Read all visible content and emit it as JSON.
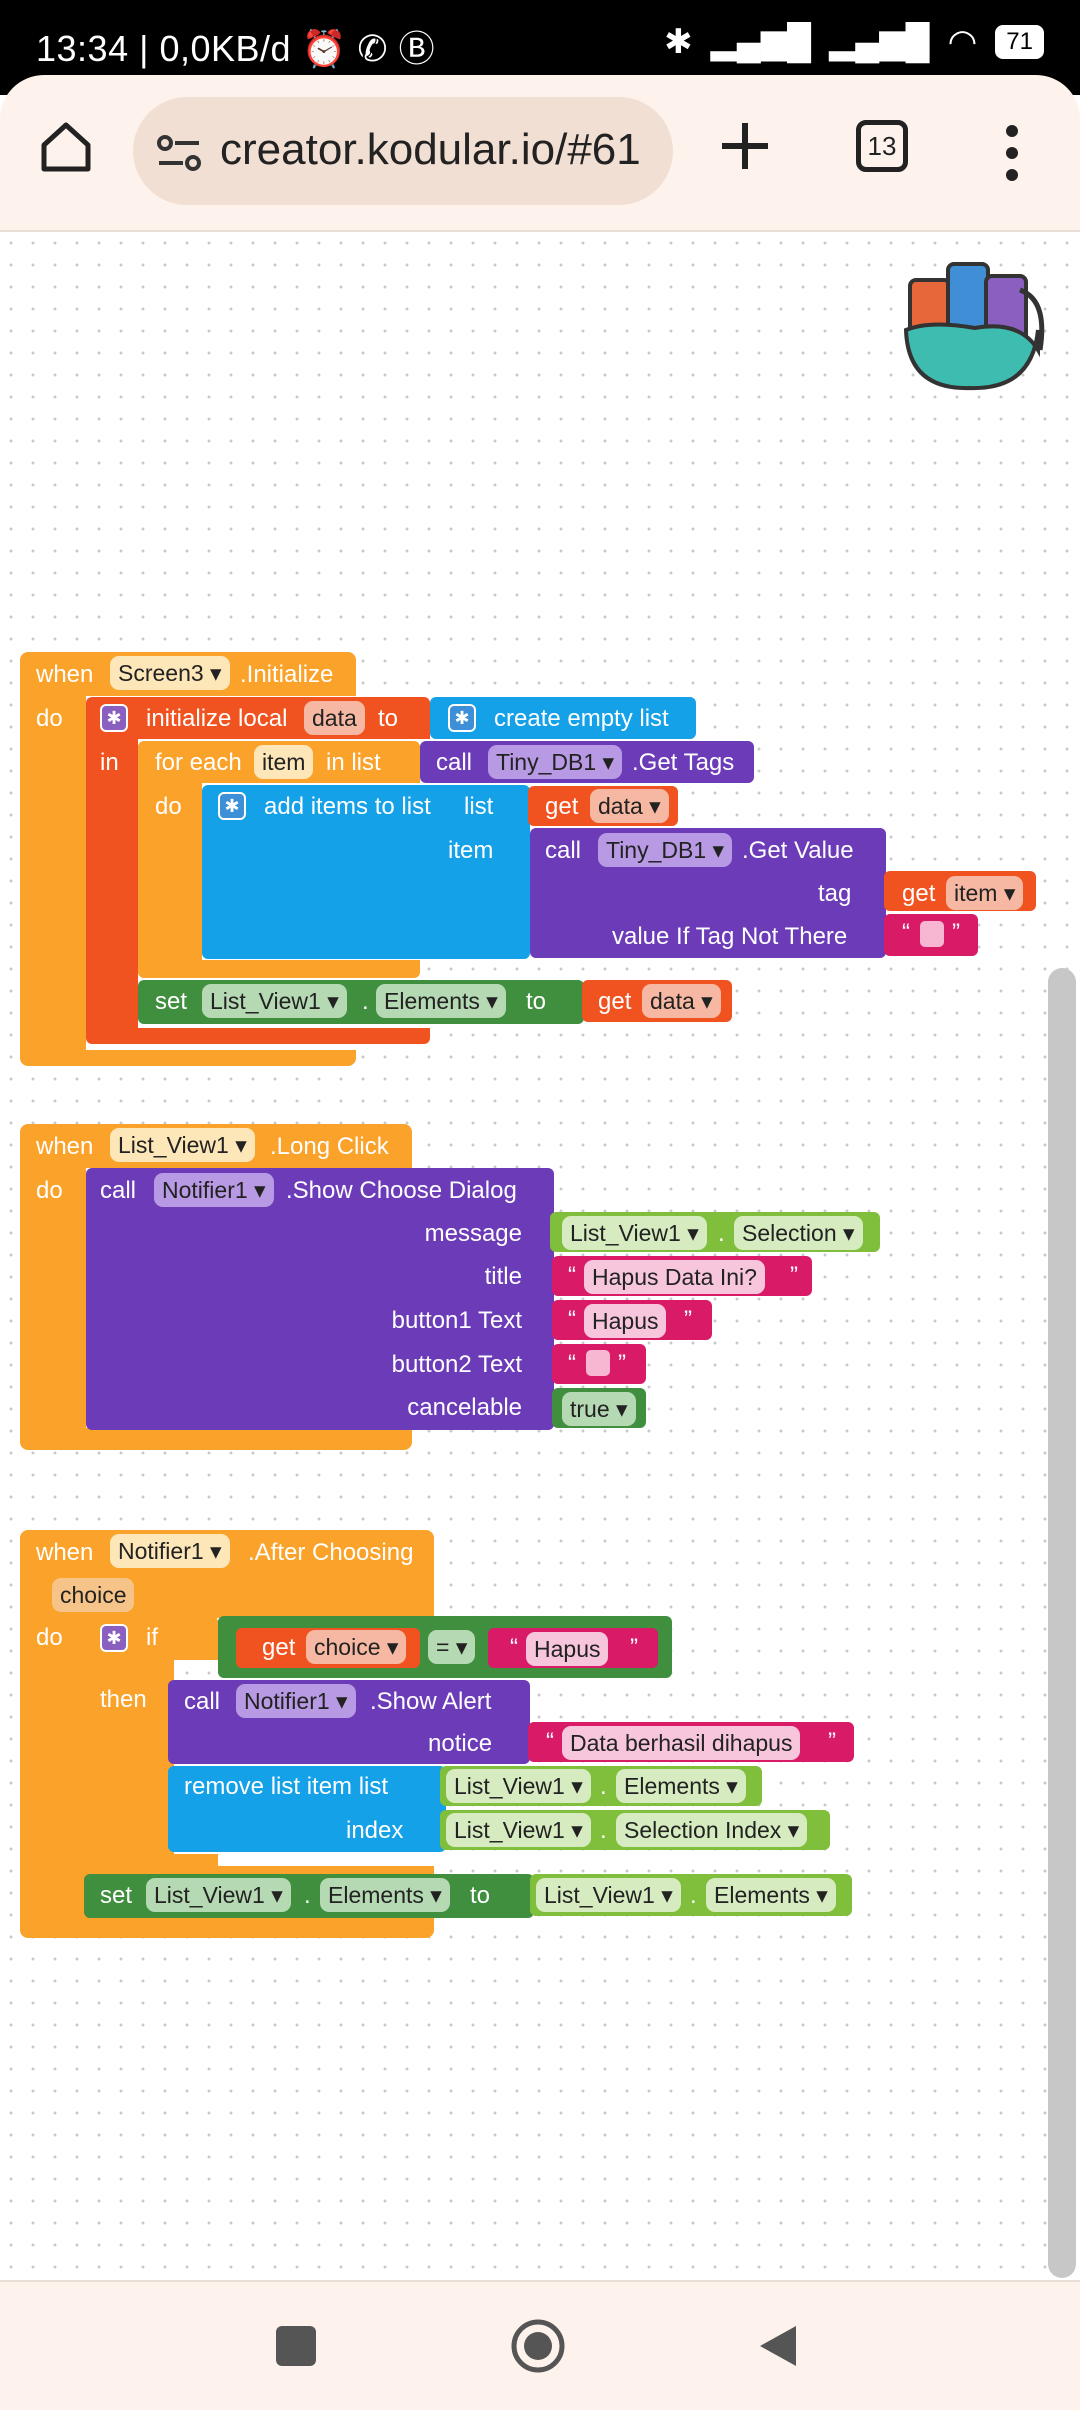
{
  "status": {
    "time": "13:34",
    "speed": "0,0KB/d",
    "battery": "71"
  },
  "browser": {
    "url": "creator.kodular.io/#61",
    "tabs_count": "13"
  },
  "block1": {
    "when": "when",
    "component": "Screen3",
    "event": ".Initialize",
    "do": "do",
    "init_local": "initialize local",
    "var": "data",
    "to": "to",
    "in": "in",
    "create_empty": "create empty list",
    "for_each": "for each",
    "item": "item",
    "in_list": "in list",
    "call": "call",
    "tinydb": "Tiny_DB1",
    "get_tags": ".Get Tags",
    "do2": "do",
    "add_items": "add items to list",
    "list": "list",
    "get": "get",
    "item_label": "item",
    "get_value": ".Get Value",
    "tag": "tag",
    "value_if": "value If Tag Not There",
    "set": "set",
    "list_view": "List_View1",
    "dot": ".",
    "elements": "Elements",
    "to2": "to",
    "quote_open": "“",
    "quote_close": "”"
  },
  "block2": {
    "when": "when",
    "component": "List_View1",
    "event": ".Long Click",
    "do": "do",
    "call": "call",
    "notifier": "Notifier1",
    "method": ".Show Choose Dialog",
    "message": "message",
    "title": "title",
    "button1": "button1 Text",
    "button2": "button2 Text",
    "cancelable": "cancelable",
    "list_view": "List_View1",
    "selection": "Selection",
    "title_value": "Hapus Data Ini?",
    "button1_value": "Hapus",
    "true_value": "true"
  },
  "block3": {
    "when": "when",
    "component": "Notifier1",
    "event": ".After Choosing",
    "param": "choice",
    "do": "do",
    "if": "if",
    "then": "then",
    "get": "get",
    "choice": "choice",
    "eq": "=",
    "hapus": "Hapus",
    "call": "call",
    "notifier": "Notifier1",
    "show_alert": ".Show Alert",
    "notice": "notice",
    "notice_value": "Data berhasil dihapus",
    "remove": "remove list item  list",
    "index": "index",
    "list_view": "List_View1",
    "elements": "Elements",
    "selection_index": "Selection Index",
    "set": "set",
    "to": "to"
  },
  "icons": {
    "home": "home-icon",
    "site_settings": "site-settings-icon",
    "new_tab": "plus-icon",
    "tabs": "tabs-icon",
    "menu": "more-vert-icon",
    "backpack": "backpack-icon",
    "square": "recents-icon",
    "circle": "home-nav-icon",
    "back": "back-icon"
  }
}
